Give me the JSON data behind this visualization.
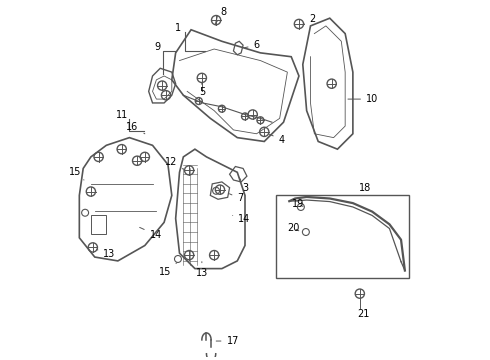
{
  "bg_color": "#ffffff",
  "line_color": "#555555",
  "text_color": "#000000",
  "lw": 1.2
}
